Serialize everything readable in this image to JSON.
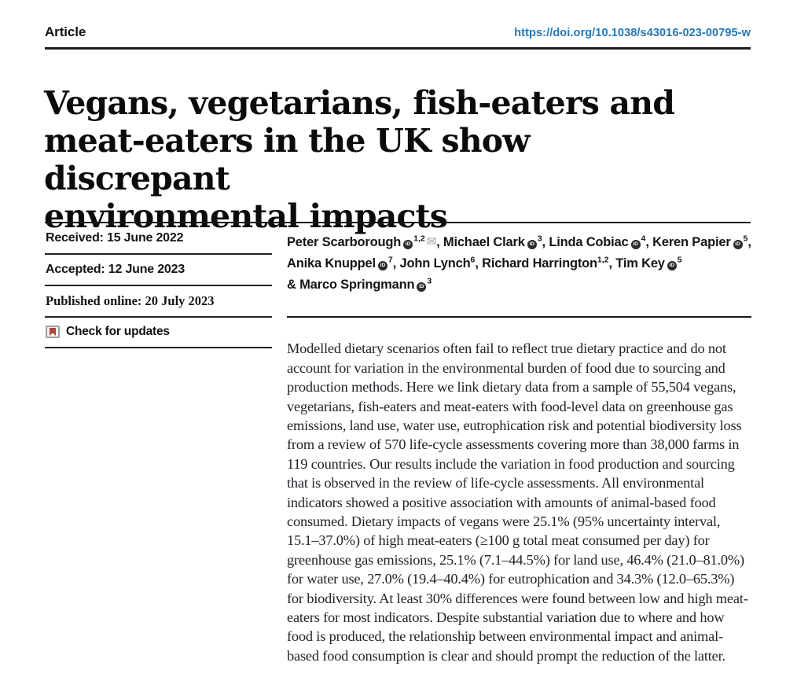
{
  "header": {
    "article_label": "Article",
    "doi_link": "https://doi.org/10.1038/s43016-023-00795-w"
  },
  "title": "Vegans, vegetarians, fish-eaters and meat-eaters in the UK show discrepant environmental impacts",
  "title_lines": [
    "Vegans, vegetarians, fish-eaters and",
    "meat-eaters in the UK show discrepant",
    "environmental impacts"
  ],
  "dates": {
    "received": "Received: 15 June 2022",
    "accepted": "Accepted: 12 June 2023",
    "published": "Published online: 20 July 2023"
  },
  "check_for_updates": {
    "label": "Check for updates"
  },
  "authors": {
    "list": [
      {
        "name": "Peter Scarborough",
        "orcid": true,
        "sup": "1,2",
        "envelope": true,
        "sep": ", "
      },
      {
        "name": "Michael Clark",
        "orcid": true,
        "sup": "3",
        "sep": ", "
      },
      {
        "name": "Linda Cobiac",
        "orcid": true,
        "sup": "4",
        "sep": ", "
      },
      {
        "name": "Keren Papier",
        "orcid": true,
        "sup": "5",
        "sep": ",",
        "newline": true
      },
      {
        "name": "Anika Knuppel",
        "orcid": true,
        "sup": "7",
        "sep": ", "
      },
      {
        "name": "John Lynch",
        "orcid": false,
        "sup": "6",
        "sep": ", "
      },
      {
        "name": "Richard Harrington",
        "orcid": false,
        "sup": "1,2",
        "sep": ", "
      },
      {
        "name": "Tim Key",
        "orcid": true,
        "sup": "5",
        "sep": "",
        "newline": true
      },
      {
        "name": "& Marco Springmann",
        "orcid": true,
        "sup": "3",
        "sep": ""
      }
    ]
  },
  "abstract": "Modelled dietary scenarios often fail to reflect true dietary practice and do not account for variation in the environmental burden of food due to sourcing and production methods. Here we link dietary data from a sample of 55,504 vegans, vegetarians, fish-eaters and meat-eaters with food-level data on greenhouse gas emissions, land use, water use, eutrophication risk and potential biodiversity loss from a review of 570 life-cycle assessments covering more than 38,000 farms in 119 countries. Our results include the variation in food production and sourcing that is observed in the review of life-cycle assessments. All environmental indicators showed a positive association with amounts of animal-based food consumed. Dietary impacts of vegans were 25.1% (95% uncertainty interval, 15.1–37.0%) of high meat-eaters (≥100 g total meat consumed per day) for greenhouse gas emissions, 25.1% (7.1–44.5%) for land use, 46.4% (21.0–81.0%) for water use, 27.0% (19.4–40.4%) for eutrophication and 34.3% (12.0–65.3%) for biodiversity. At least 30% differences were found between low and high meat-eaters for most indicators. Despite substantial variation due to where and how food is produced, the relationship between environmental impact and animal-based food consumption is clear and should prompt the reduction of the latter.",
  "icons": {
    "envelope": "✉",
    "orcid_text": "iD",
    "crossmark": "crossmark-badge"
  },
  "colors": {
    "link_blue": "#2277bb",
    "rule_black": "#1c1c1c",
    "crossmark_red": "#b5403e",
    "envelope_gray": "#b7c1ca"
  }
}
